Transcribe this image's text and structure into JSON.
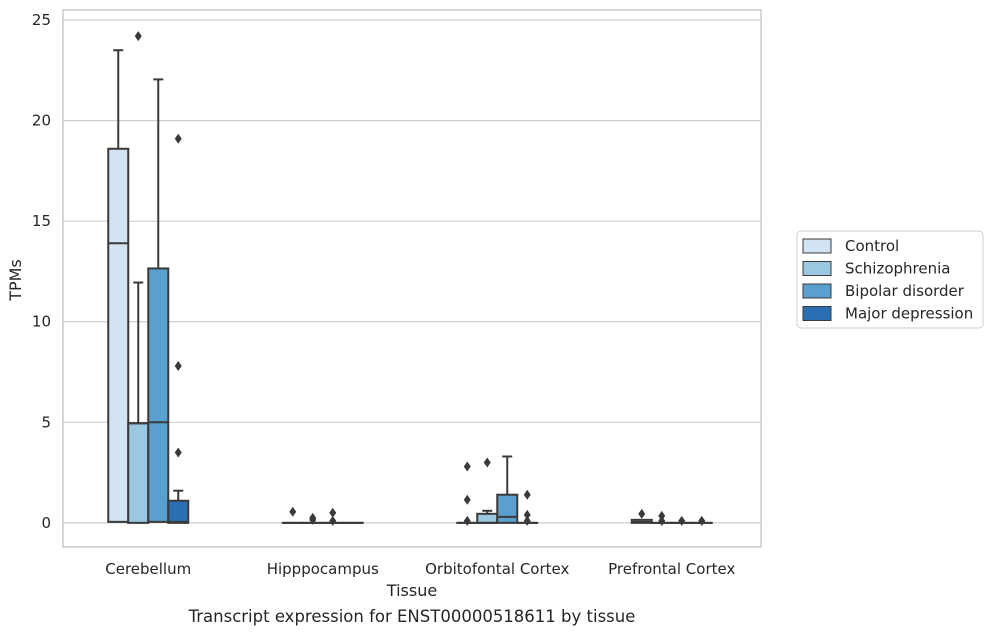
{
  "chart_data": {
    "type": "box",
    "title": "",
    "caption": "Transcript expression for ENST00000518611 by tissue",
    "xlabel": "Tissue",
    "ylabel": "TPMs",
    "ylim": [
      -1.2,
      25.5
    ],
    "yticks": [
      0,
      5,
      10,
      15,
      20,
      25
    ],
    "ytick_labels": [
      "0",
      "5",
      "10",
      "15",
      "20",
      "25"
    ],
    "grid": true,
    "legend_position": "right",
    "categories": [
      "Cerebellum",
      "Hipppocampus",
      "Orbitofontal Cortex",
      "Prefrontal Cortex"
    ],
    "series": [
      {
        "name": "Control",
        "color": "#d2e3f3",
        "boxes": [
          {
            "q1": 0.05,
            "median": 13.9,
            "q3": 18.6,
            "whisker_low": 0.0,
            "whisker_high": 23.5,
            "outliers": []
          },
          {
            "q1": 0.0,
            "median": 0.0,
            "q3": 0.0,
            "whisker_low": 0.0,
            "whisker_high": 0.0,
            "outliers": [
              0.55
            ]
          },
          {
            "q1": 0.0,
            "median": 0.0,
            "q3": 0.0,
            "whisker_low": 0.0,
            "whisker_high": 0.0,
            "outliers": [
              2.8,
              1.15,
              0.1
            ]
          },
          {
            "q1": 0.0,
            "median": 0.05,
            "q3": 0.15,
            "whisker_low": 0.0,
            "whisker_high": 0.15,
            "outliers": [
              0.45
            ]
          }
        ]
      },
      {
        "name": "Schizophrenia",
        "color": "#9ac8e0",
        "boxes": [
          {
            "q1": 0.0,
            "median": 4.95,
            "q3": 4.95,
            "whisker_low": 0.0,
            "whisker_high": 11.95,
            "outliers": [
              24.2
            ]
          },
          {
            "q1": 0.0,
            "median": 0.0,
            "q3": 0.0,
            "whisker_low": 0.0,
            "whisker_high": 0.0,
            "outliers": [
              0.25,
              0.15
            ]
          },
          {
            "q1": 0.0,
            "median": 0.0,
            "q3": 0.45,
            "whisker_low": 0.0,
            "whisker_high": 0.6,
            "outliers": [
              3.0
            ]
          },
          {
            "q1": 0.0,
            "median": 0.0,
            "q3": 0.0,
            "whisker_low": 0.0,
            "whisker_high": 0.0,
            "outliers": [
              0.35,
              0.1
            ]
          }
        ]
      },
      {
        "name": "Bipolar disorder",
        "color": "#5aa0ce",
        "boxes": [
          {
            "q1": 0.05,
            "median": 5.0,
            "q3": 12.65,
            "whisker_low": 0.0,
            "whisker_high": 22.05,
            "outliers": []
          },
          {
            "q1": 0.0,
            "median": 0.0,
            "q3": 0.0,
            "whisker_low": 0.0,
            "whisker_high": 0.0,
            "outliers": [
              0.5,
              0.1
            ]
          },
          {
            "q1": 0.0,
            "median": 0.3,
            "q3": 1.4,
            "whisker_low": 0.0,
            "whisker_high": 3.3,
            "outliers": []
          },
          {
            "q1": 0.0,
            "median": 0.0,
            "q3": 0.0,
            "whisker_low": 0.0,
            "whisker_high": 0.0,
            "outliers": [
              0.1
            ]
          }
        ]
      },
      {
        "name": "Major depression",
        "color": "#2a6fb1",
        "boxes": [
          {
            "q1": 0.0,
            "median": 0.05,
            "q3": 1.1,
            "whisker_low": 0.0,
            "whisker_high": 1.6,
            "outliers": [
              19.1,
              7.8,
              3.5
            ]
          },
          {
            "q1": 0.0,
            "median": 0.0,
            "q3": 0.0,
            "whisker_low": 0.0,
            "whisker_high": 0.0,
            "outliers": []
          },
          {
            "q1": 0.0,
            "median": 0.0,
            "q3": 0.0,
            "whisker_low": 0.0,
            "whisker_high": 0.0,
            "outliers": [
              1.4,
              0.4,
              0.1
            ]
          },
          {
            "q1": 0.0,
            "median": 0.0,
            "q3": 0.0,
            "whisker_low": 0.0,
            "whisker_high": 0.0,
            "outliers": [
              0.1
            ]
          }
        ]
      }
    ]
  },
  "style": {
    "grid_color": "#cfcfcf",
    "line_color": "#3a3a3a",
    "frame_color": "#cccccc",
    "text_color": "#262626"
  }
}
